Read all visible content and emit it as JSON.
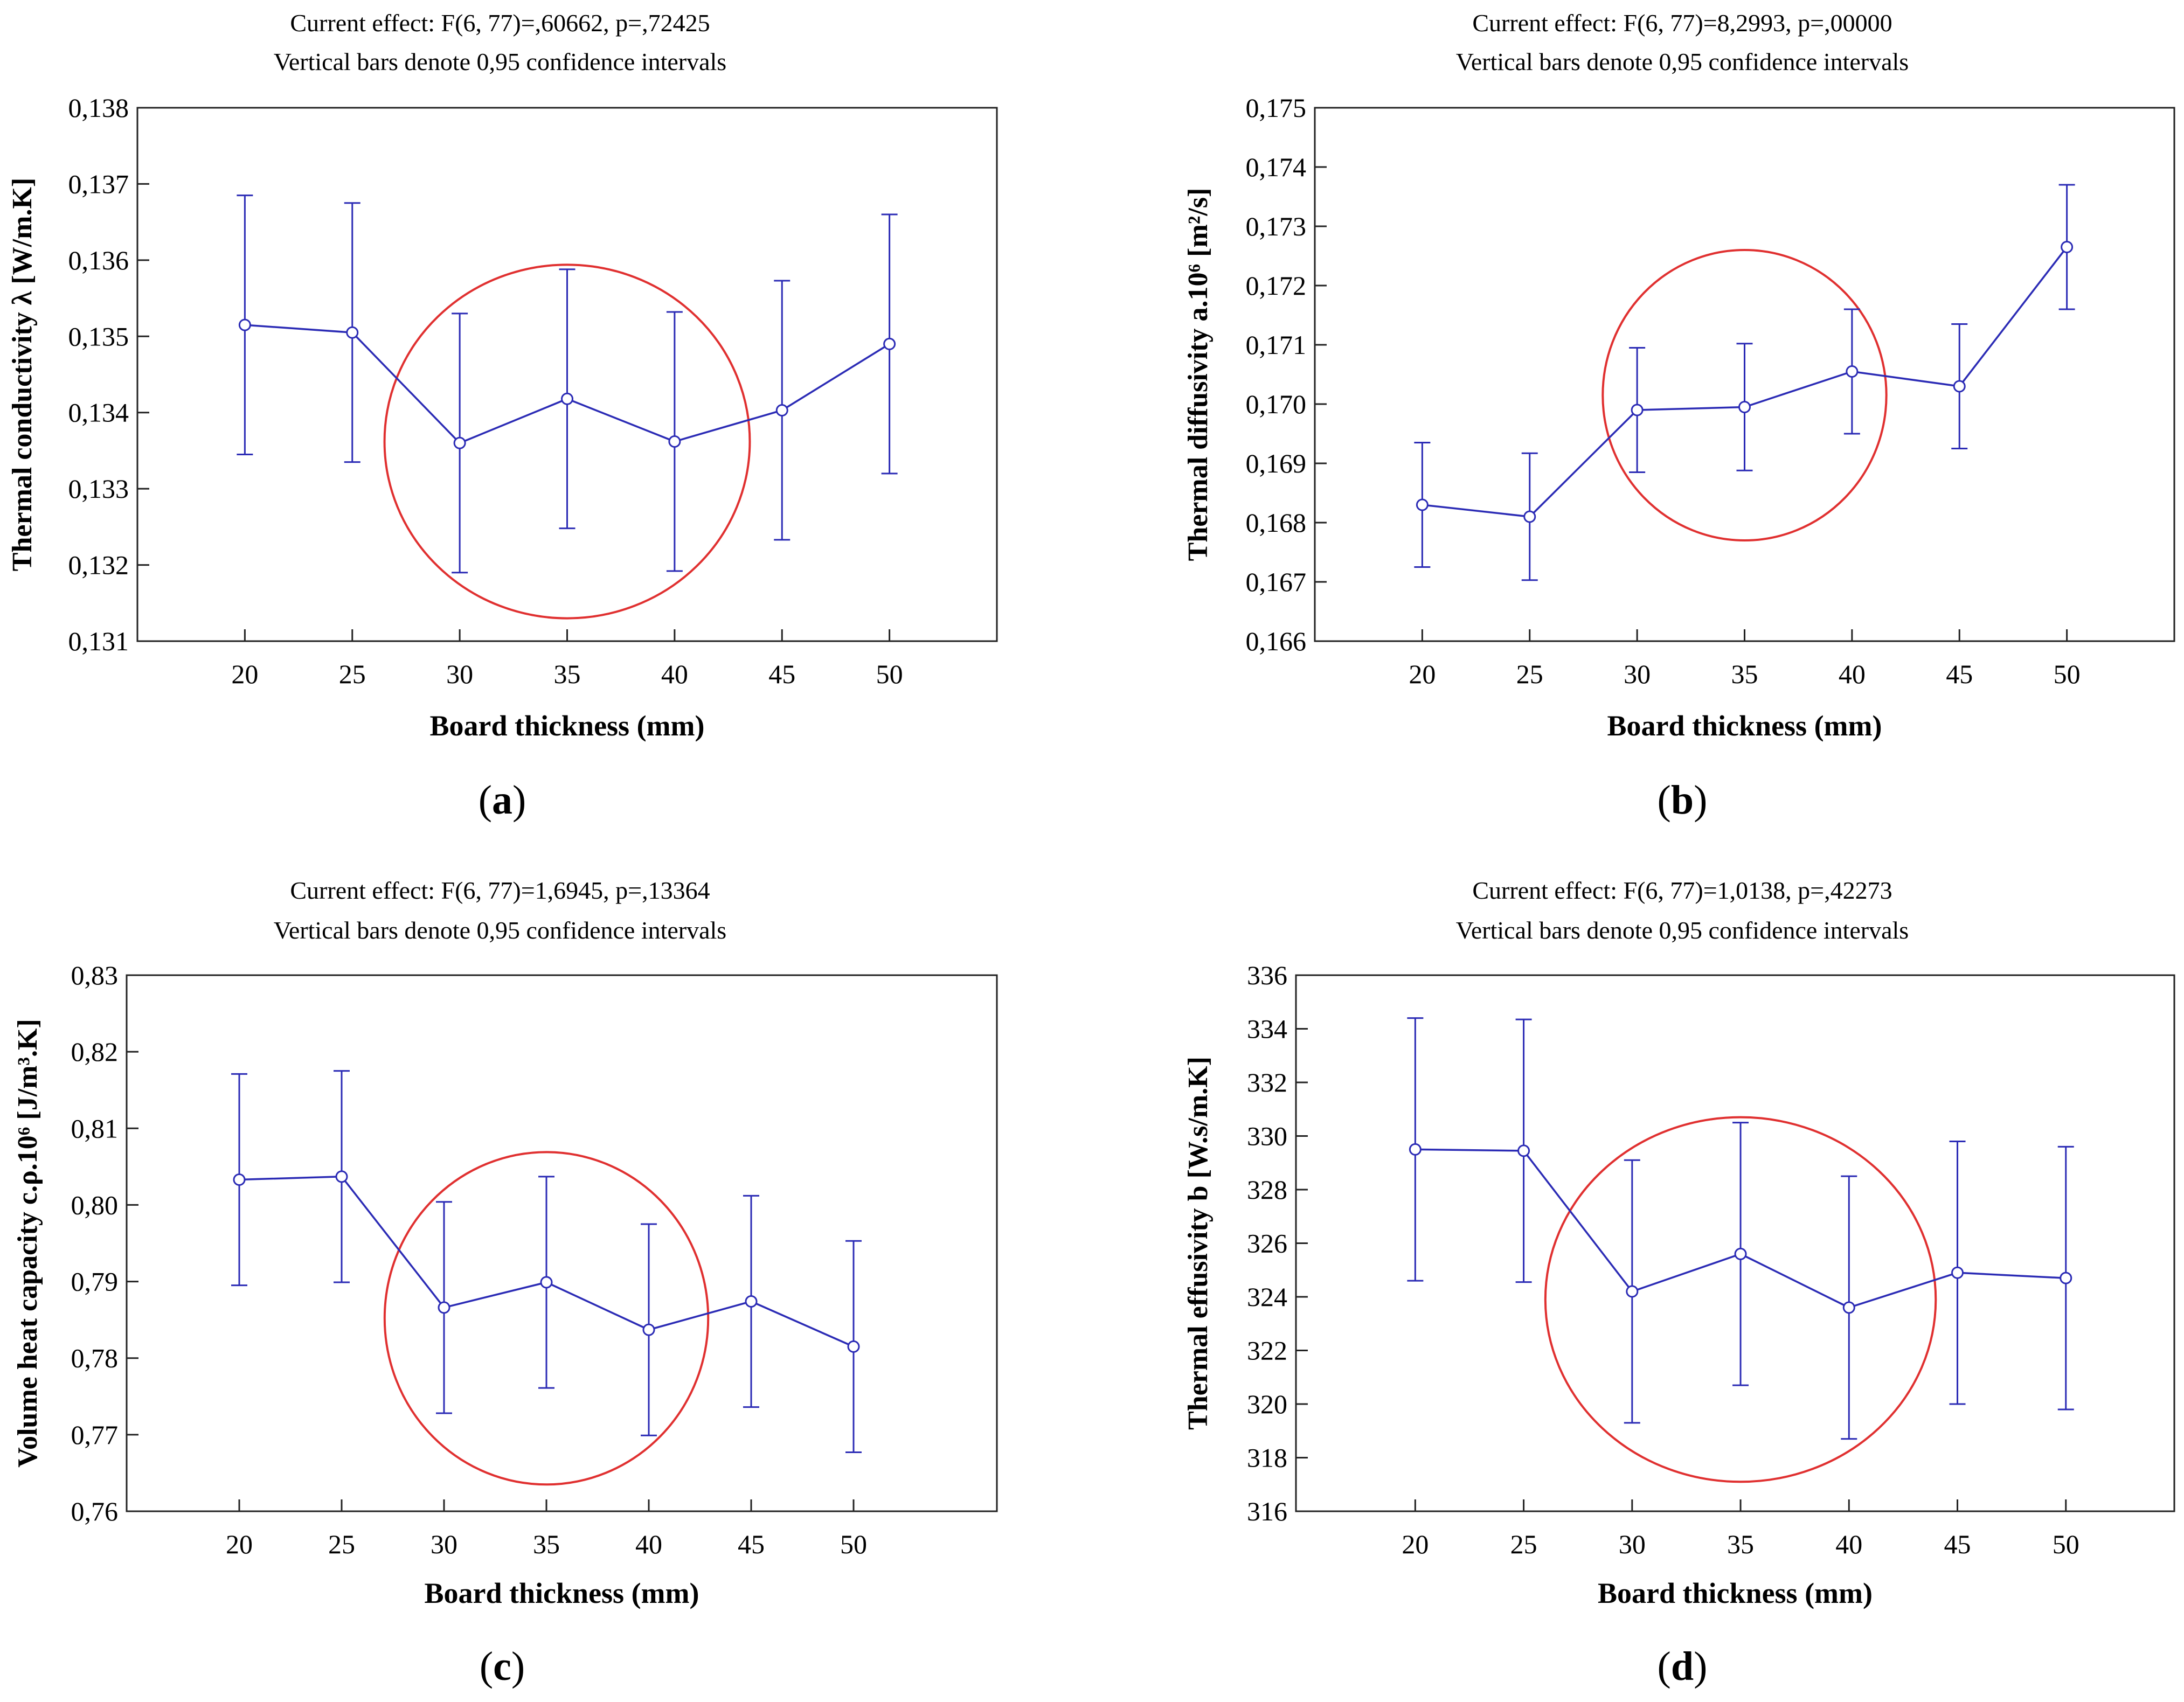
{
  "chart_data": [
    {
      "type": "line",
      "panel_label": "a",
      "header_line1": "Current effect: F(6, 77)=,60662, p=,72425",
      "header_line2": "Vertical bars denote 0,95 confidence intervals",
      "xlabel": "Board thickness (mm)",
      "ylabel": "Thermal conductivity λ [W/m.K]",
      "x": [
        20,
        25,
        30,
        35,
        40,
        45,
        50
      ],
      "x_ticks": [
        "20",
        "25",
        "30",
        "35",
        "40",
        "45",
        "50"
      ],
      "xlim": [
        15,
        55
      ],
      "ylim": [
        0.131,
        0.138
      ],
      "y_ticks": [
        0.131,
        0.132,
        0.133,
        0.134,
        0.135,
        0.136,
        0.137,
        0.138
      ],
      "y_tick_labels": [
        "0,131",
        "0,132",
        "0,133",
        "0,134",
        "0,135",
        "0,136",
        "0,137",
        "0,138"
      ],
      "series": [
        {
          "name": "mean",
          "values": [
            0.13515,
            0.13505,
            0.1336,
            0.13418,
            0.13362,
            0.13403,
            0.1349
          ],
          "ci_low": [
            0.13345,
            0.13335,
            0.1319,
            0.13248,
            0.13192,
            0.13233,
            0.1332
          ],
          "ci_high": [
            0.13685,
            0.13675,
            0.1353,
            0.13588,
            0.13532,
            0.13573,
            0.1366
          ]
        }
      ],
      "highlight_circle": {
        "cx": 35,
        "cy": 0.13362,
        "rx": 8.5,
        "ry": 0.00232
      }
    },
    {
      "type": "line",
      "panel_label": "b",
      "header_line1": "Current effect: F(6, 77)=8,2993, p=,00000",
      "header_line2": "Vertical bars denote 0,95 confidence intervals",
      "xlabel": "Board thickness (mm)",
      "ylabel": "Thermal diffusivity a.10⁶ [m²/s]",
      "x": [
        20,
        25,
        30,
        35,
        40,
        45,
        50
      ],
      "x_ticks": [
        "20",
        "25",
        "30",
        "35",
        "40",
        "45",
        "50"
      ],
      "xlim": [
        15,
        55
      ],
      "ylim": [
        0.166,
        0.175
      ],
      "y_ticks": [
        0.166,
        0.167,
        0.168,
        0.169,
        0.17,
        0.171,
        0.172,
        0.173,
        0.174,
        0.175
      ],
      "y_tick_labels": [
        "0,166",
        "0,167",
        "0,168",
        "0,169",
        "0,170",
        "0,171",
        "0,172",
        "0,173",
        "0,174",
        "0,175"
      ],
      "series": [
        {
          "name": "mean",
          "values": [
            0.1683,
            0.1681,
            0.1699,
            0.16995,
            0.17055,
            0.1703,
            0.17265
          ],
          "ci_low": [
            0.16725,
            0.16703,
            0.16885,
            0.16888,
            0.1695,
            0.16925,
            0.1716
          ],
          "ci_high": [
            0.16935,
            0.16917,
            0.17095,
            0.17102,
            0.1716,
            0.17135,
            0.1737
          ]
        }
      ],
      "highlight_circle": {
        "cx": 35,
        "cy": 0.17015,
        "rx": 6.6,
        "ry": 0.00245
      }
    },
    {
      "type": "line",
      "panel_label": "c",
      "header_line1": "Current effect: F(6, 77)=1,6945, p=,13364",
      "header_line2": "Vertical bars denote 0,95 confidence intervals",
      "xlabel": "Board thickness (mm)",
      "ylabel": "Volume heat capacity c.ρ.10⁶ [J/m³.K]",
      "x": [
        20,
        25,
        30,
        35,
        40,
        45,
        50
      ],
      "x_ticks": [
        "20",
        "25",
        "30",
        "35",
        "40",
        "45",
        "50"
      ],
      "xlim": [
        14.5,
        57
      ],
      "ylim": [
        0.76,
        0.83
      ],
      "y_ticks": [
        0.76,
        0.77,
        0.78,
        0.79,
        0.8,
        0.81,
        0.82,
        0.83
      ],
      "y_tick_labels": [
        "0,76",
        "0,77",
        "0,78",
        "0,79",
        "0,80",
        "0,81",
        "0,82",
        "0,83"
      ],
      "series": [
        {
          "name": "mean",
          "values": [
            0.8033,
            0.8037,
            0.7866,
            0.7899,
            0.7837,
            0.7874,
            0.7815
          ],
          "ci_low": [
            0.7895,
            0.7899,
            0.7728,
            0.7761,
            0.7699,
            0.7736,
            0.7677
          ],
          "ci_high": [
            0.8171,
            0.8175,
            0.8004,
            0.8037,
            0.7975,
            0.8012,
            0.7953
          ]
        }
      ],
      "highlight_circle": {
        "cx": 35,
        "cy": 0.7852,
        "rx": 7.9,
        "ry": 0.0217
      }
    },
    {
      "type": "line",
      "panel_label": "d",
      "header_line1": "Current effect: F(6, 77)=1,0138, p=,42273",
      "header_line2": "Vertical bars denote 0,95 confidence intervals",
      "xlabel": "Board thickness (mm)",
      "ylabel": "Thermal effusivity b [W.s/m.K]",
      "x": [
        20,
        25,
        30,
        35,
        40,
        45,
        50
      ],
      "x_ticks": [
        "20",
        "25",
        "30",
        "35",
        "40",
        "45",
        "50"
      ],
      "xlim": [
        14.5,
        55
      ],
      "ylim": [
        316,
        336
      ],
      "y_ticks": [
        316,
        318,
        320,
        322,
        324,
        326,
        328,
        330,
        332,
        334,
        336
      ],
      "y_tick_labels": [
        "316",
        "318",
        "320",
        "322",
        "324",
        "326",
        "328",
        "330",
        "332",
        "334",
        "336"
      ],
      "series": [
        {
          "name": "mean",
          "values": [
            329.5,
            329.45,
            324.2,
            325.6,
            323.6,
            324.9,
            324.7
          ],
          "ci_low": [
            324.6,
            324.55,
            319.3,
            320.7,
            318.7,
            320.0,
            319.8
          ],
          "ci_high": [
            334.4,
            334.35,
            329.1,
            330.5,
            328.5,
            329.8,
            329.6
          ]
        }
      ],
      "highlight_circle": {
        "cx": 35,
        "cy": 323.9,
        "rx": 9.0,
        "ry": 6.8
      }
    }
  ]
}
